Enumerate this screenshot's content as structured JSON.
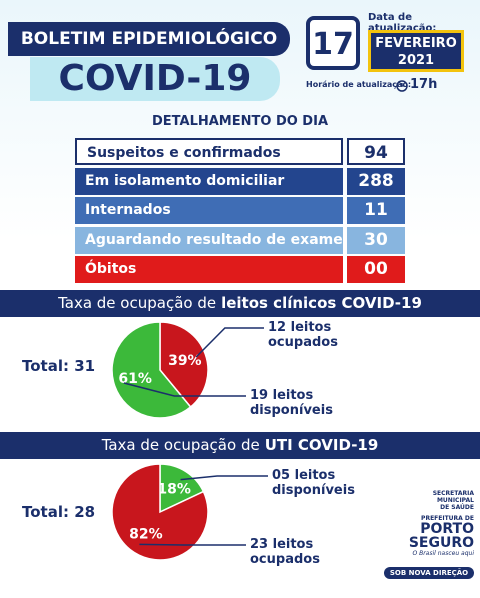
{
  "header": {
    "title": "BOLETIM EPIDEMIOLÓGICO",
    "subtitle": "COVID-19",
    "update_label": "Data de atualização:",
    "day": "17",
    "month": "FEVEREIRO",
    "year": "2021",
    "time_label": "Horário de atualização:",
    "time": "17h"
  },
  "table": {
    "title": "DETALHAMENTO DO DIA",
    "rows": [
      [
        "Suspeitos e confirmados",
        "94"
      ],
      [
        "Em isolamento domiciliar",
        "288"
      ],
      [
        "Internados",
        "11"
      ],
      [
        "Aguardando resultado de exame",
        "30"
      ],
      [
        "Óbitos",
        "00"
      ]
    ]
  },
  "charts": [
    {
      "type": "pie",
      "title": "Taxa de ocupação de",
      "title_bold": "leitos clínicos COVID-19",
      "total": "Total: 31",
      "series": [
        {
          "name": "12 leitos ocupados",
          "color": "#c8161d",
          "values": [
            39
          ],
          "value_labels": [
            "39%"
          ]
        },
        {
          "name": "19 leitos disponíveis",
          "color": "#3cb93a",
          "values": [
            61
          ],
          "value_labels": [
            "61%"
          ]
        }
      ]
    },
    {
      "type": "pie",
      "title": "Taxa de ocupação de",
      "title_bold": "UTI COVID-19",
      "total": "Total: 28",
      "series": [
        {
          "name": "05 leitos disponíveis",
          "color": "#3cb93a",
          "values": [
            18
          ],
          "value_labels": [
            "18%"
          ]
        },
        {
          "name": "23 leitos ocupados",
          "color": "#c8161d",
          "values": [
            82
          ],
          "value_labels": [
            "82%"
          ]
        }
      ]
    }
  ],
  "footer": {
    "secretaria": "SECRETARIA MUNICIPAL DE SAÚDE",
    "prefeitura": "PREFEITURA DE",
    "city": "PORTO SEGURO",
    "motto": "O Brasil nasceu aqui",
    "slogan": "SOB NOVA DIREÇÃO"
  }
}
